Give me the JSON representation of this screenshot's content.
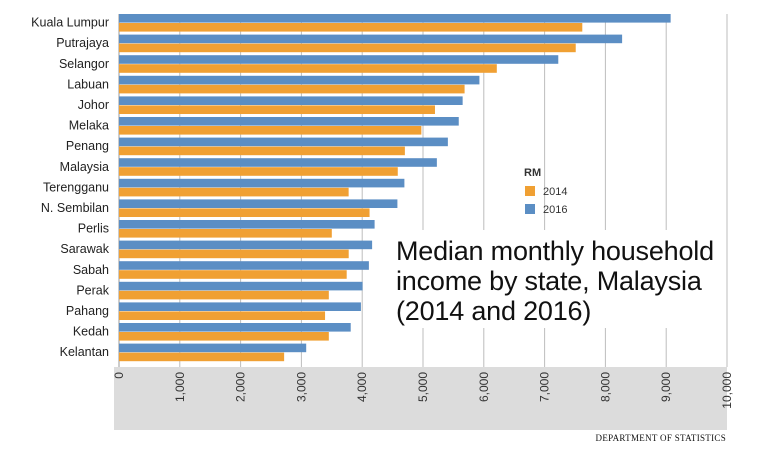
{
  "chart_data": {
    "type": "bar",
    "orientation": "horizontal",
    "title_lines": [
      "Median monthly household",
      "income by state, Malaysia",
      "(2014 and 2016)"
    ],
    "source": "DEPARTMENT OF STATISTICS",
    "legend_title": "RM",
    "highlight_category": "Sarawak",
    "highlight_color": "#e05a2b",
    "xlim": [
      0,
      10000
    ],
    "xticks": [
      "0",
      "1,000",
      "2,000",
      "3,000",
      "4,000",
      "5,000",
      "6,000",
      "7,000",
      "8,000",
      "9,000",
      "10,000"
    ],
    "grid": true,
    "legend_position": "right",
    "categories": [
      "Kuala Lumpur",
      "Putrajaya",
      "Selangor",
      "Labuan",
      "Johor",
      "Melaka",
      "Penang",
      "Malaysia",
      "Terengganu",
      "N. Sembilan",
      "Perlis",
      "Sarawak",
      "Sabah",
      "Perak",
      "Pahang",
      "Kedah",
      "Kelantan"
    ],
    "series": [
      {
        "name": "2016",
        "color": "#5b8ec4",
        "values": [
          9073,
          8275,
          7225,
          5928,
          5652,
          5588,
          5409,
          5228,
          4694,
          4579,
          4204,
          4163,
          4110,
          4006,
          3979,
          3811,
          3079
        ]
      },
      {
        "name": "2014",
        "color": "#f0a033",
        "values": [
          7620,
          7512,
          6214,
          5684,
          5197,
          4973,
          4702,
          4585,
          3777,
          4121,
          3500,
          3778,
          3745,
          3451,
          3389,
          3451,
          2716
        ]
      }
    ]
  }
}
